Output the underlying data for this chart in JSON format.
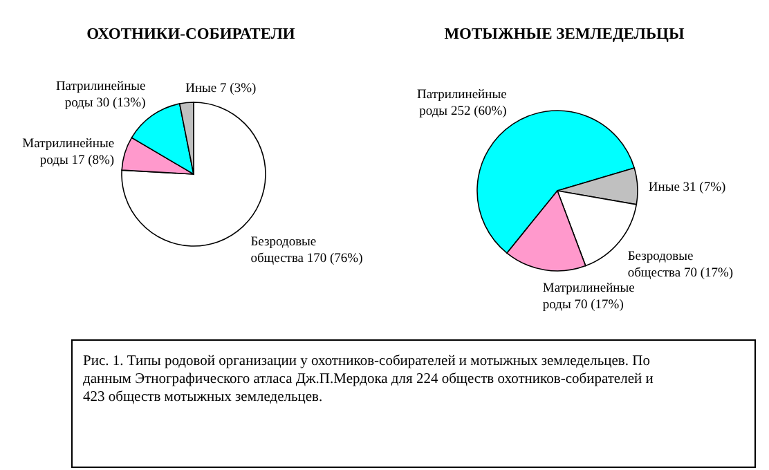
{
  "chart_data": [
    {
      "type": "pie",
      "title": "ОХОТНИКИ-СОБИРАТЕЛИ",
      "categories": [
        "Безродовые общества",
        "Матрилинейные роды",
        "Патрилинейные роды",
        "Иные"
      ],
      "values": [
        170,
        17,
        30,
        7
      ],
      "value_labels": [
        "170 (76%)",
        "17 (8%)",
        "30 (13%)",
        "7 (3%)"
      ],
      "colors": [
        "#ffffff",
        "#ff99cc",
        "#00ffff",
        "#c0c0c0"
      ]
    },
    {
      "type": "pie",
      "title": "МОТЫЖНЫЕ ЗЕМЛЕДЕЛЬЦЫ",
      "categories": [
        "Патрилинейные роды",
        "Иные",
        "Безродовые общества",
        "Матрилинейные роды"
      ],
      "values": [
        252,
        31,
        70,
        70
      ],
      "value_labels": [
        "252 (60%)",
        "31 (7%)",
        "70 (17%)",
        "70 (17%)"
      ],
      "colors": [
        "#00ffff",
        "#c0c0c0",
        "#ffffff",
        "#ff99cc"
      ],
      "annotations": [
        "Рис. 1. Типы родовой организации у охотников-собирателей и мотыжных земледельцев.  По данным Этнографического атласа Дж.П.Мердока для 224 обществ охотников-собирателей и 423 обществ мотыжных земледельцев."
      ]
    }
  ]
}
